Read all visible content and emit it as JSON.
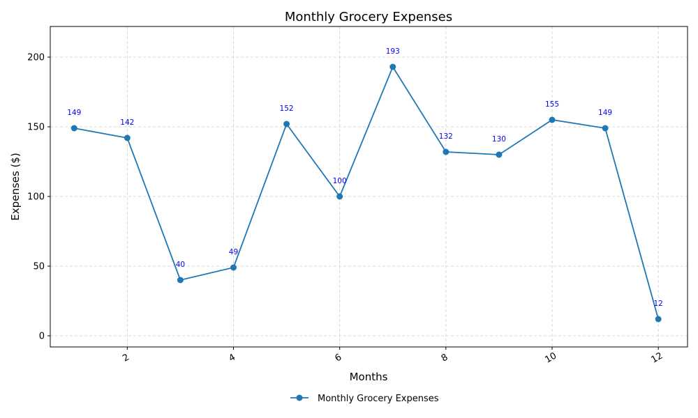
{
  "chart_data": {
    "type": "line",
    "title": "Monthly Grocery Expenses",
    "xlabel": "Months",
    "ylabel": "Expenses ($)",
    "x": [
      1,
      2,
      3,
      4,
      5,
      6,
      7,
      8,
      9,
      10,
      11,
      12
    ],
    "series": [
      {
        "name": "Monthly Grocery Expenses",
        "values": [
          149,
          142,
          40,
          49,
          152,
          100,
          193,
          132,
          130,
          155,
          149,
          12
        ]
      }
    ],
    "data_labels": [
      "149",
      "142",
      "40",
      "49",
      "152",
      "100",
      "193",
      "132",
      "130",
      "155",
      "149",
      "12"
    ],
    "xticks": [
      2,
      4,
      6,
      8,
      10,
      12
    ],
    "xtick_labels": [
      "2",
      "4",
      "6",
      "8",
      "10",
      "12"
    ],
    "yticks": [
      0,
      50,
      100,
      150,
      200
    ],
    "ytick_labels": [
      "0",
      "50",
      "100",
      "150",
      "200"
    ],
    "xlim": [
      0.55,
      12.55
    ],
    "ylim": [
      -8,
      222
    ],
    "grid": true,
    "legend_position": "bottom-center",
    "colors": {
      "line": "#1f77b4",
      "data_label": "#0000ff"
    }
  }
}
